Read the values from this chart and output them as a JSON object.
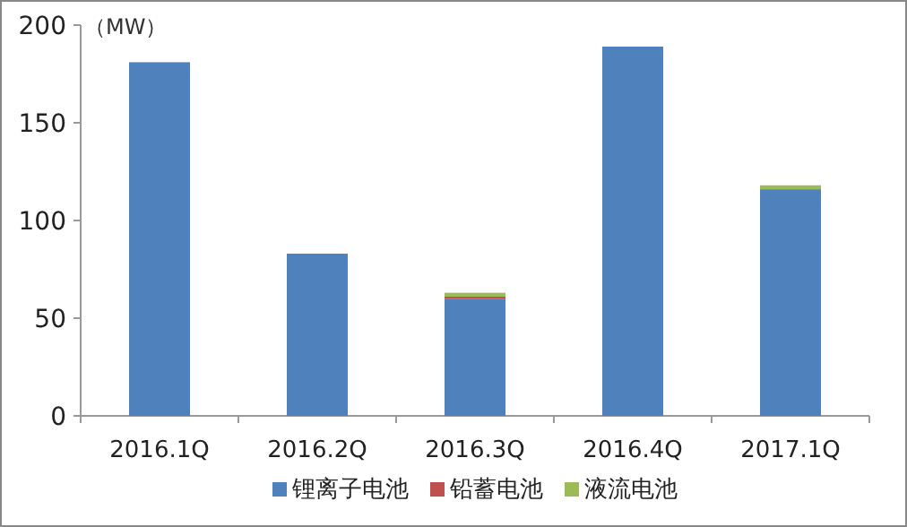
{
  "chart_data": {
    "type": "bar",
    "stacked": true,
    "ylabel": "（MW）",
    "categories": [
      "2016.1Q",
      "2016.2Q",
      "2016.3Q",
      "2016.4Q",
      "2017.1Q"
    ],
    "series": [
      {
        "name": "锂离子电池",
        "color": "#4f81bd",
        "values": [
          181,
          83,
          60,
          189,
          116
        ]
      },
      {
        "name": "铅蓄电池",
        "color": "#c0504d",
        "values": [
          0,
          0,
          1,
          0,
          0
        ]
      },
      {
        "name": "液流电池",
        "color": "#9bbb59",
        "values": [
          0,
          0,
          2,
          0,
          2
        ]
      }
    ],
    "ylim": [
      0,
      200
    ],
    "yticks": [
      0,
      50,
      100,
      150,
      200
    ],
    "legend": "bottom"
  }
}
